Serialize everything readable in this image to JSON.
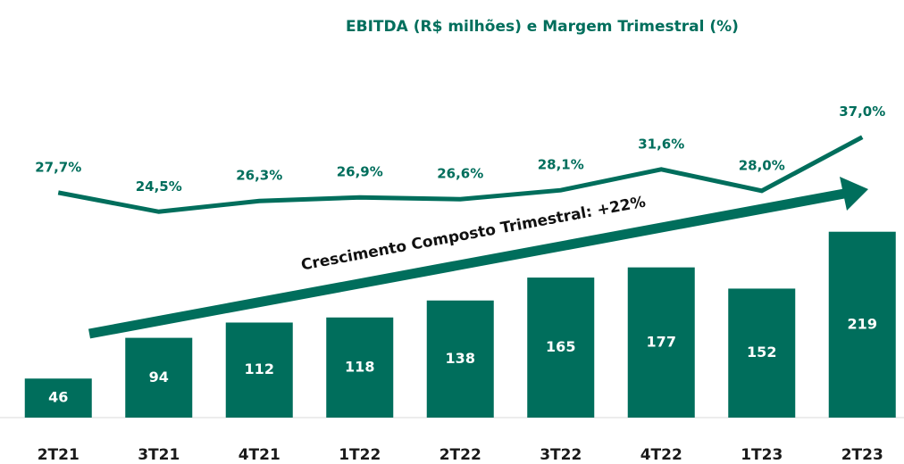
{
  "chart_data": {
    "type": "bar",
    "title": "EBITDA (R$ milhões) e Margem Trimestral (%)",
    "categories": [
      "2T21",
      "3T21",
      "4T21",
      "1T22",
      "2T22",
      "3T22",
      "4T22",
      "1T23",
      "2T23"
    ],
    "series": [
      {
        "name": "EBITDA",
        "color": "#006e5c",
        "values": [
          46,
          94,
          112,
          118,
          138,
          165,
          177,
          152,
          219
        ]
      },
      {
        "name": "Margem",
        "type": "line",
        "axis": "y2",
        "color": "#006e5c",
        "values": [
          27.7,
          24.5,
          26.3,
          26.9,
          26.6,
          28.1,
          31.6,
          28.0,
          37.0
        ],
        "value_labels": [
          "27,7%",
          "24,5%",
          "26,3%",
          "26,9%",
          "26,6%",
          "28,1%",
          "31,6%",
          "28,0%",
          "37,0%"
        ]
      }
    ],
    "ylim": [
      0,
      450
    ],
    "y2lim": [
      -10,
      54
    ],
    "annotations": [
      "Crescimento Composto Trimestral: +22%"
    ]
  }
}
